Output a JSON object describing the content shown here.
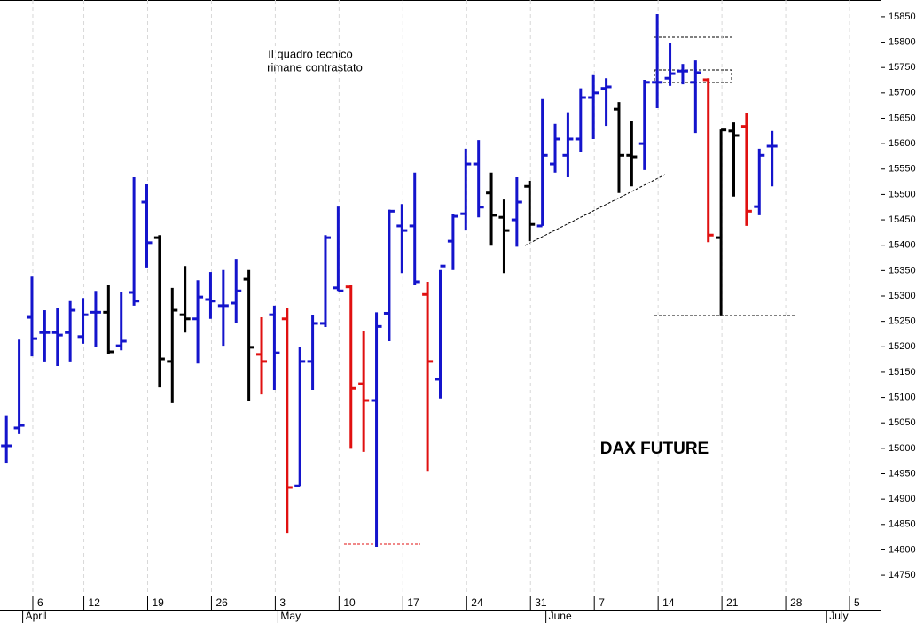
{
  "chart_data": {
    "type": "ohlc",
    "title": "DAX FUTURE",
    "annotations": [
      "Il quadro tecnico",
      "rimane contrastato"
    ],
    "categories": [
      null,
      null,
      "6",
      null,
      null,
      null,
      "12",
      null,
      null,
      null,
      null,
      "19",
      null,
      null,
      null,
      null,
      "26",
      null,
      null,
      null,
      null,
      "3",
      null,
      null,
      null,
      null,
      "10",
      null,
      null,
      null,
      null,
      "17",
      null,
      null,
      null,
      null,
      "24",
      null,
      null,
      null,
      null,
      "31",
      null,
      null,
      null,
      null,
      "7",
      null,
      null,
      null,
      null,
      "14",
      null,
      null,
      null,
      null,
      "21",
      null,
      null,
      null,
      null,
      "28",
      null,
      null,
      null,
      null,
      "5",
      null,
      null
    ],
    "months": [
      "April",
      "May",
      "June",
      "July"
    ],
    "open": [
      15005,
      15040,
      15258,
      15228,
      15228,
      15228,
      15220,
      15268,
      15268,
      15202,
      15307,
      15485,
      15415,
      15171,
      15263,
      15255,
      15293,
      15281,
      15286,
      15333,
      15185,
      15263,
      15255,
      14926,
      15171,
      15246,
      15316,
      15318,
      15127,
      15094,
      15266,
      15438,
      15438,
      15303,
      15136,
      15408,
      15462,
      15560,
      15503,
      15455,
      15450,
      15516,
      15438,
      15560,
      15577,
      15609,
      15691,
      15709,
      15668,
      15577,
      15600,
      15721,
      15729,
      15743,
      15721,
      15726,
      15415,
      15625,
      15634,
      15476,
      15595,
      null,
      null,
      null,
      null,
      null,
      null,
      null,
      null
    ],
    "high": [
      15065,
      15214,
      15338,
      15272,
      15276,
      15290,
      15296,
      15310,
      15321,
      15307,
      15534,
      15520,
      15420,
      15316,
      15359,
      15331,
      15347,
      15351,
      15373,
      15351,
      15258,
      15281,
      15276,
      15199,
      15263,
      15420,
      15476,
      15321,
      15232,
      15268,
      15470,
      15481,
      15543,
      15328,
      15351,
      15462,
      15590,
      15607,
      15543,
      15490,
      15534,
      15527,
      15688,
      15639,
      15662,
      15709,
      15735,
      15729,
      15682,
      15644,
      15726,
      15855,
      15799,
      15757,
      15764,
      15729,
      15628,
      15642,
      15660,
      15590,
      15625,
      null,
      null,
      null,
      null,
      null,
      null,
      null,
      null
    ],
    "low": [
      14970,
      15028,
      15181,
      15171,
      15162,
      15171,
      15206,
      15199,
      15185,
      15193,
      15281,
      15356,
      15120,
      15089,
      15228,
      15167,
      15255,
      15202,
      15246,
      15094,
      15106,
      15115,
      14832,
      14926,
      15115,
      15239,
      15310,
      14999,
      14993,
      14806,
      15211,
      15345,
      15321,
      14954,
      15098,
      15351,
      15429,
      15455,
      15399,
      15345,
      15397,
      15408,
      15438,
      15543,
      15534,
      15583,
      15609,
      15635,
      15503,
      15516,
      15548,
      15670,
      15714,
      15717,
      15621,
      15406,
      15260,
      15496,
      15438,
      15459,
      15516,
      null,
      null,
      null,
      null,
      null,
      null,
      null,
      null
    ],
    "close": [
      15005,
      15045,
      15216,
      15228,
      15223,
      15272,
      15263,
      15268,
      15190,
      15211,
      15290,
      15405,
      15176,
      15272,
      15255,
      15298,
      15290,
      15281,
      15310,
      15199,
      15171,
      15188,
      14923,
      15171,
      15246,
      15415,
      15310,
      15118,
      15094,
      15240,
      15467,
      15429,
      15328,
      15171,
      15359,
      15457,
      15560,
      15475,
      15459,
      15429,
      15485,
      15441,
      15577,
      15609,
      15609,
      15691,
      15700,
      15712,
      15577,
      15574,
      15721,
      15721,
      15738,
      15743,
      15740,
      15420,
      15627,
      15616,
      15467,
      15577,
      15595,
      null,
      null,
      null,
      null,
      null,
      null,
      null,
      null
    ],
    "colors": [
      "#1414cc",
      "#1414cc",
      "#1414cc",
      "#1414cc",
      "#1414cc",
      "#1414cc",
      "#1414cc",
      "#1414cc",
      "#000000",
      "#1414cc",
      "#1414cc",
      "#1414cc",
      "#000000",
      "#000000",
      "#000000",
      "#1414cc",
      "#1414cc",
      "#1414cc",
      "#1414cc",
      "#000000",
      "#e01010",
      "#1414cc",
      "#e01010",
      "#1414cc",
      "#1414cc",
      "#1414cc",
      "#1414cc",
      "#e01010",
      "#e01010",
      "#1414cc",
      "#1414cc",
      "#1414cc",
      "#1414cc",
      "#e01010",
      "#1414cc",
      "#1414cc",
      "#1414cc",
      "#1414cc",
      "#000000",
      "#000000",
      "#1414cc",
      "#000000",
      "#1414cc",
      "#1414cc",
      "#1414cc",
      "#1414cc",
      "#1414cc",
      "#1414cc",
      "#000000",
      "#000000",
      "#1414cc",
      "#1414cc",
      "#1414cc",
      "#1414cc",
      "#1414cc",
      "#e01010",
      "#000000",
      "#000000",
      "#e01010",
      "#1414cc",
      "#1414cc",
      null,
      null,
      null,
      null,
      null,
      null,
      null,
      null
    ],
    "ylim": [
      14710,
      15883
    ],
    "yticks": [
      14750,
      14800,
      14850,
      14900,
      14950,
      15000,
      15050,
      15100,
      15150,
      15200,
      15250,
      15300,
      15350,
      15400,
      15450,
      15500,
      15550,
      15600,
      15650,
      15700,
      15750,
      15800,
      15850
    ],
    "grid": true
  }
}
